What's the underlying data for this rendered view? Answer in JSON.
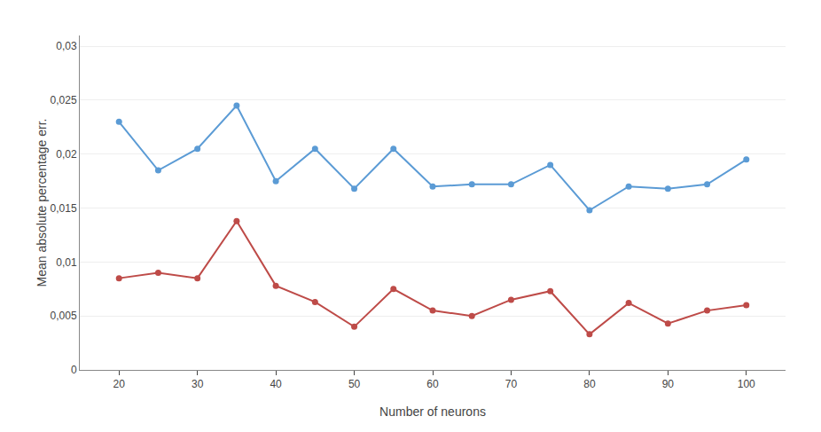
{
  "chart_data": {
    "type": "line",
    "x": [
      20,
      25,
      30,
      35,
      40,
      45,
      50,
      55,
      60,
      65,
      70,
      75,
      80,
      85,
      90,
      95,
      100
    ],
    "series": [
      {
        "color": "#5B9BD5",
        "marker": "circle",
        "line_style": "solid",
        "values": [
          0.023,
          0.0185,
          0.0205,
          0.0245,
          0.0175,
          0.0205,
          0.0168,
          0.0205,
          0.017,
          0.0172,
          0.0172,
          0.019,
          0.0148,
          0.017,
          0.0168,
          0.0172,
          0.0195
        ]
      },
      {
        "color": "#BE4B48",
        "marker": "circle",
        "line_style": "solid",
        "values": [
          0.0085,
          0.009,
          0.0085,
          0.0138,
          0.0078,
          0.0063,
          0.004,
          0.0075,
          0.0055,
          0.005,
          0.0065,
          0.0073,
          0.0033,
          0.0062,
          0.0043,
          0.0055,
          0.006
        ]
      }
    ],
    "xlabel": "Number of neurons",
    "ylabel": "Mean absolute percentage err.",
    "xlim": [
      15,
      105
    ],
    "xticks": [
      20,
      30,
      40,
      50,
      60,
      70,
      80,
      90,
      100
    ],
    "ylim": [
      0,
      0.031
    ],
    "yticks": [
      0,
      {
        "value": 0.005,
        "label": "0,005"
      },
      {
        "value": 0.01,
        "label": "0,01"
      },
      {
        "value": 0.015,
        "label": "0,015"
      },
      {
        "value": 0.02,
        "label": "0,02"
      },
      {
        "value": 0.025,
        "label": "0,025"
      },
      {
        "value": 0.03,
        "label": "0,03"
      }
    ],
    "grid": true
  }
}
